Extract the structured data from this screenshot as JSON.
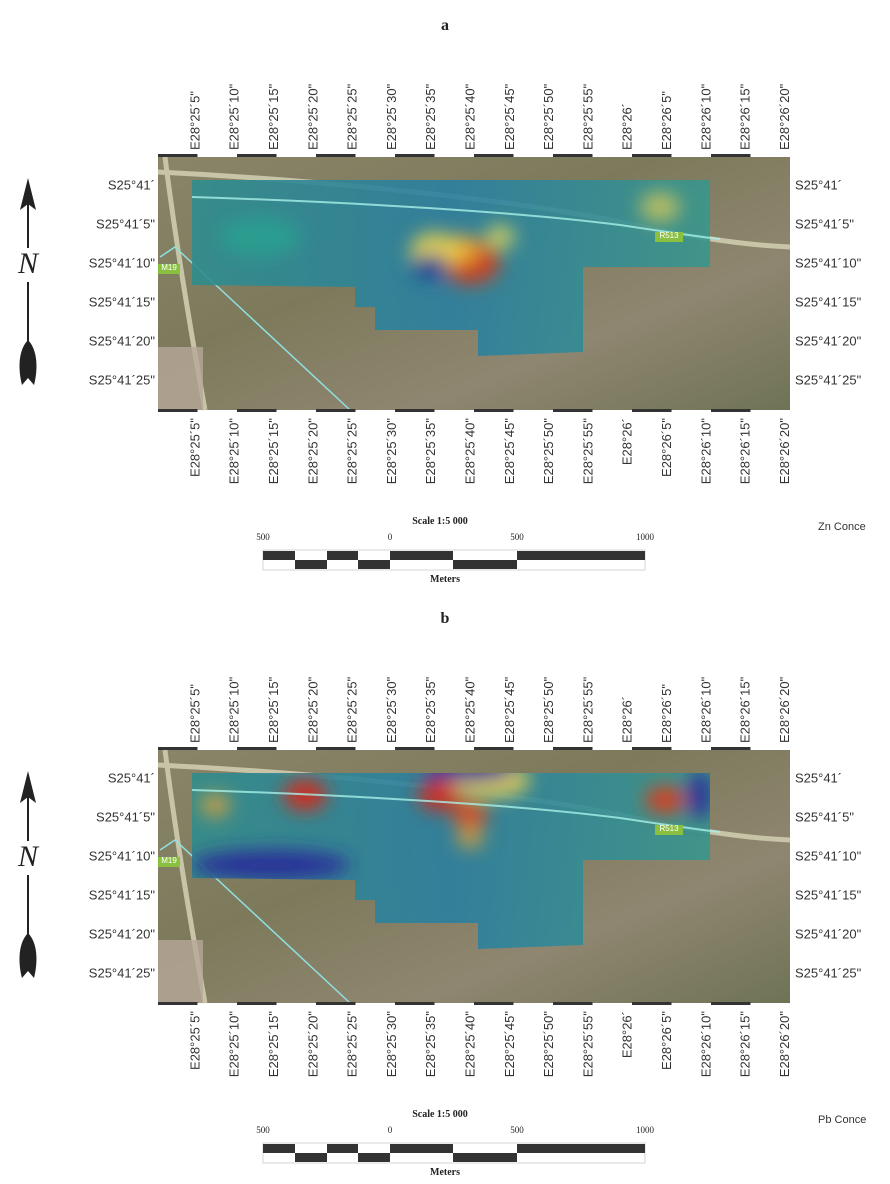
{
  "panels": [
    {
      "label": "a",
      "lon_labels": [
        "E28°25´5\"",
        "E28°25´10\"",
        "E28°25´15\"",
        "E28°25´20\"",
        "E28°25´25\"",
        "E28°25´30\"",
        "E28°25´35\"",
        "E28°25´40\"",
        "E28°25´45\"",
        "E28°25´50\"",
        "E28°25´55\"",
        "E28°26´",
        "E28°26´5\"",
        "E28°26´10\"",
        "E28°26´15\"",
        "E28°26´20\""
      ],
      "lat_labels": [
        "S25°41´",
        "S25°41´5\"",
        "S25°41´10\"",
        "S25°41´15\"",
        "S25°41´20\"",
        "S25°41´25\""
      ],
      "north_label": "N",
      "road_labels": [
        "M19",
        "R513"
      ],
      "scale_title": "Scale 1:5 000",
      "scale_ticks": [
        500,
        0,
        500,
        1000
      ],
      "scale_unit": "Meters",
      "legend_title": "Zn Conce"
    },
    {
      "label": "b",
      "lon_labels": [
        "E28°25´5\"",
        "E28°25´10\"",
        "E28°25´15\"",
        "E28°25´20\"",
        "E28°25´25\"",
        "E28°25´30\"",
        "E28°25´35\"",
        "E28°25´40\"",
        "E28°25´45\"",
        "E28°25´50\"",
        "E28°25´55\"",
        "E28°26´",
        "E28°26´5\"",
        "E28°26´10\"",
        "E28°26´15\"",
        "E28°26´20\""
      ],
      "lat_labels": [
        "S25°41´",
        "S25°41´5\"",
        "S25°41´10\"",
        "S25°41´15\"",
        "S25°41´20\"",
        "S25°41´25\""
      ],
      "north_label": "N",
      "road_labels": [
        "M19",
        "R513"
      ],
      "scale_title": "Scale 1:5 000",
      "scale_ticks": [
        500,
        0,
        500,
        1000
      ],
      "scale_unit": "Meters",
      "legend_title": "Pb Conce"
    }
  ]
}
